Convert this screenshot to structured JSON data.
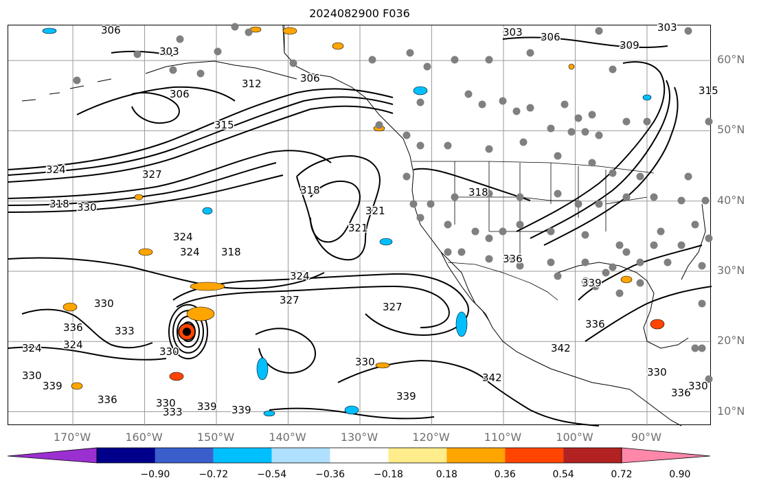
{
  "title": "2024082900 F036",
  "map": {
    "projection": "plate-carree",
    "lon_range": [
      -179,
      -81
    ],
    "lat_range": [
      8,
      65
    ],
    "gridlines": true,
    "station_dot_color": "#808080",
    "contour_color": "#000000",
    "latitude_labels": [
      "60°N",
      "50°N",
      "40°N",
      "30°N",
      "20°N",
      "10°N"
    ],
    "longitude_labels": [
      "170°W",
      "160°W",
      "150°W",
      "140°W",
      "130°W",
      "120°W",
      "110°W",
      "100°W",
      "90°W"
    ],
    "contour_labels": [
      "306",
      "303",
      "312",
      "306",
      "303",
      "306",
      "303",
      "309",
      "306",
      "315",
      "315",
      "324",
      "327",
      "330",
      "318",
      "321",
      "324",
      "324",
      "318",
      "321",
      "318",
      "318",
      "324",
      "327",
      "327",
      "336",
      "339",
      "330",
      "336",
      "333",
      "330",
      "324",
      "324",
      "330",
      "336",
      "330",
      "333",
      "339",
      "339",
      "330",
      "342",
      "342",
      "339",
      "336",
      "330",
      "336",
      "330",
      "339"
    ]
  },
  "colorbar": {
    "ticks": [
      "−0.90",
      "−0.72",
      "−0.54",
      "−0.36",
      "−0.18",
      "0.18",
      "0.36",
      "0.54",
      "0.72",
      "0.90"
    ],
    "colors": [
      "#9b30d0",
      "#00008b",
      "#3a5fcd",
      "#00bfff",
      "#b0e0ff",
      "#ffffff",
      "#ffec8b",
      "#ffa500",
      "#ff4500",
      "#b22222",
      "#ff88aa"
    ]
  }
}
